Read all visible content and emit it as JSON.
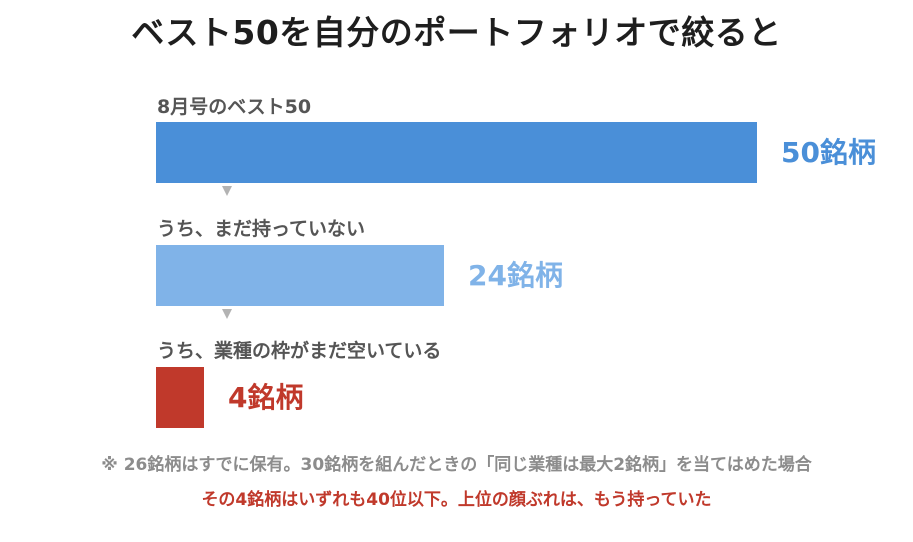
{
  "title": "ベスト50を自分のポートフォリオで絞ると",
  "colors": {
    "bar1": "#4a8fd8",
    "bar2": "#80b3e8",
    "bar3": "#c0392b",
    "arrow": "#b3b3b3",
    "note": "#8c8c8c",
    "emphasis": "#c0392b"
  },
  "chart_data": {
    "type": "bar",
    "orientation": "horizontal",
    "categories": [
      "8月号のベスト50",
      "うち、まだ持っていない",
      "うち、業種の枠がまだ空いている"
    ],
    "values": [
      50,
      24,
      4
    ],
    "value_labels": [
      "50銘柄",
      "24銘柄",
      "4銘柄"
    ],
    "xlim": [
      0,
      50
    ],
    "grid": false,
    "axes_visible": false
  },
  "footnote": "※ 26銘柄はすでに保有。30銘柄を組んだときの「同じ業種は最大2銘柄」を当てはめた場合",
  "conclusion": "その4銘柄はいずれも40位以下。上位の顔ぶれは、もう持っていた"
}
